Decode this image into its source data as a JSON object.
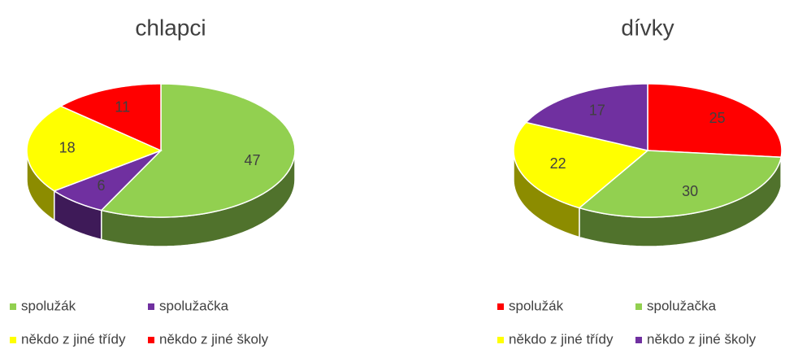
{
  "chart_data": [
    {
      "type": "pie",
      "title": "chlapci",
      "categories": [
        "spolužák",
        "spolužačka",
        "někdo z jiné třídy",
        "někdo z jiné školy"
      ],
      "values": [
        47,
        6,
        18,
        11
      ],
      "colors": [
        "#92d050",
        "#7030a0",
        "#ffff00",
        "#ff0000"
      ],
      "legend": "bottom"
    },
    {
      "type": "pie",
      "title": "dívky",
      "categories": [
        "spolužák",
        "spolužačka",
        "někdo z jiné třídy",
        "někdo z jiné školy"
      ],
      "values": [
        25,
        30,
        22,
        17
      ],
      "colors": [
        "#ff0000",
        "#92d050",
        "#ffff00",
        "#7030a0"
      ],
      "legend": "bottom"
    }
  ]
}
